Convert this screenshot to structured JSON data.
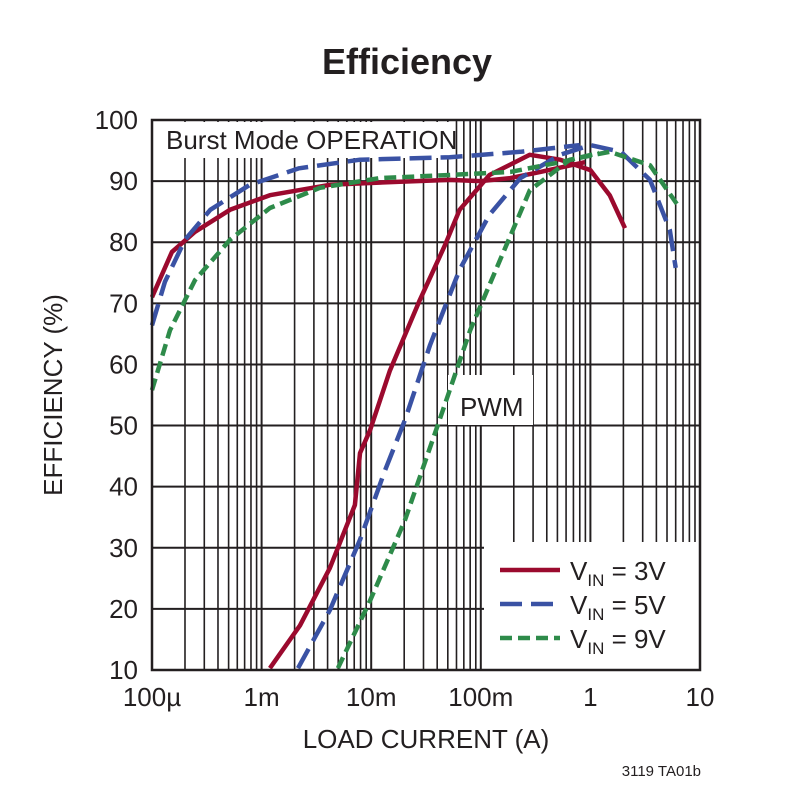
{
  "chart_data": {
    "type": "line",
    "title": "Efficiency",
    "xlabel": "LOAD CURRENT (A)",
    "ylabel": "EFFICIENCY (%)",
    "x_scale": "log",
    "xlim": [
      0.0001,
      10
    ],
    "ylim": [
      10,
      100
    ],
    "grid": true,
    "legend_position": "bottom-right",
    "x_ticks": [
      {
        "value": 0.0001,
        "label": "100µ"
      },
      {
        "value": 0.001,
        "label": "1m"
      },
      {
        "value": 0.01,
        "label": "10m"
      },
      {
        "value": 0.1,
        "label": "100m"
      },
      {
        "value": 1,
        "label": "1"
      },
      {
        "value": 10,
        "label": "10"
      }
    ],
    "y_ticks": [
      10,
      20,
      30,
      40,
      50,
      60,
      70,
      80,
      90,
      100
    ],
    "annotations": [
      "Burst Mode OPERATION",
      "PWM"
    ],
    "footnote": "3119 TA01b",
    "series": [
      {
        "name": "VIN = 3V",
        "legend": {
          "v": "V",
          "sub": "IN",
          "rest": " = 3V"
        },
        "color": "#9b0a2e",
        "dash": "solid",
        "burst": [
          [
            0.0001,
            71
          ],
          [
            0.000152,
            78.4
          ],
          [
            0.000247,
            81.7
          ],
          [
            0.000515,
            85.3
          ],
          [
            0.00119,
            87.7
          ],
          [
            0.0042,
            89.4
          ],
          [
            0.0183,
            89.9
          ],
          [
            0.052,
            90.2
          ],
          [
            0.099,
            90
          ],
          [
            0.186,
            90.5
          ],
          [
            0.35,
            91.5
          ],
          [
            0.89,
            93.1
          ]
        ],
        "pwm": [
          [
            0.00119,
            10.3
          ],
          [
            0.00224,
            17.3
          ],
          [
            0.0042,
            26.7
          ],
          [
            0.0071,
            37
          ],
          [
            0.0079,
            45.5
          ],
          [
            0.0098,
            49.3
          ],
          [
            0.0148,
            59
          ],
          [
            0.0277,
            70.5
          ],
          [
            0.047,
            79.5
          ],
          [
            0.064,
            85.3
          ],
          [
            0.12,
            91
          ],
          [
            0.28,
            94.3
          ],
          [
            0.53,
            93.5
          ],
          [
            1.0,
            91.8
          ],
          [
            1.5,
            87.7
          ],
          [
            2.07,
            82.3
          ]
        ]
      },
      {
        "name": "VIN = 5V",
        "legend": {
          "v": "V",
          "sub": "IN",
          "rest": " = 5V"
        },
        "color": "#3a52a4",
        "dash": "long-dash",
        "burst": [
          [
            0.0001,
            66.4
          ],
          [
            0.000131,
            73.5
          ],
          [
            0.0002,
            80.4
          ],
          [
            0.00034,
            85.3
          ],
          [
            0.00078,
            89.4
          ],
          [
            0.0022,
            92.1
          ],
          [
            0.0079,
            93.5
          ],
          [
            0.052,
            93.9
          ],
          [
            0.23,
            94.8
          ],
          [
            0.8,
            95.9
          ]
        ],
        "pwm": [
          [
            0.00215,
            10.3
          ],
          [
            0.0042,
            19.8
          ],
          [
            0.0079,
            31.3
          ],
          [
            0.0134,
            42.7
          ],
          [
            0.0203,
            50.9
          ],
          [
            0.0345,
            63.2
          ],
          [
            0.064,
            75.5
          ],
          [
            0.12,
            84.5
          ],
          [
            0.23,
            90.5
          ],
          [
            0.53,
            94.3
          ],
          [
            1.0,
            95.9
          ],
          [
            1.9,
            94.8
          ],
          [
            3.5,
            90.2
          ],
          [
            5.3,
            82
          ],
          [
            6.0,
            75.8
          ]
        ]
      },
      {
        "name": "VIN = 9V",
        "legend": {
          "v": "V",
          "sub": "IN",
          "rest": " = 9V"
        },
        "color": "#2e8b4a",
        "dash": "short-dash",
        "burst": [
          [
            0.0001,
            55.8
          ],
          [
            0.000146,
            65.6
          ],
          [
            0.000247,
            73.8
          ],
          [
            0.000515,
            80.4
          ],
          [
            0.00119,
            85.6
          ],
          [
            0.0034,
            88.9
          ],
          [
            0.012,
            90.5
          ],
          [
            0.052,
            91
          ],
          [
            0.186,
            91.5
          ],
          [
            0.53,
            93.1
          ],
          [
            1.2,
            94.6
          ]
        ],
        "pwm": [
          [
            0.00497,
            10.3
          ],
          [
            0.0098,
            21.4
          ],
          [
            0.0203,
            34.5
          ],
          [
            0.042,
            50.9
          ],
          [
            0.08,
            65.6
          ],
          [
            0.15,
            77.1
          ],
          [
            0.28,
            88.5
          ],
          [
            0.65,
            93.5
          ],
          [
            1.5,
            94.8
          ],
          [
            3.5,
            92.6
          ],
          [
            6.3,
            86
          ]
        ]
      }
    ]
  }
}
